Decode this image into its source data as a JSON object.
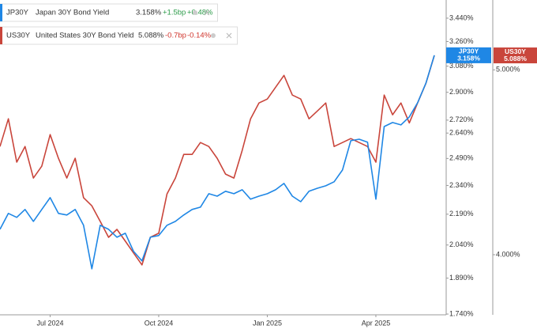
{
  "chart_data": {
    "type": "line",
    "log_scale": true,
    "grid": false,
    "categories": [
      null,
      null,
      null,
      null,
      null,
      null,
      "Jul 2024",
      null,
      null,
      null,
      null,
      null,
      null,
      null,
      null,
      null,
      null,
      null,
      null,
      "Oct 2024",
      null,
      null,
      null,
      null,
      null,
      null,
      null,
      null,
      null,
      null,
      null,
      null,
      "Jan 2025",
      null,
      null,
      null,
      null,
      null,
      null,
      null,
      null,
      null,
      null,
      null,
      null,
      "Apr 2025",
      null,
      null,
      null,
      null,
      null,
      null,
      null
    ],
    "series": [
      {
        "name": "JP30Y",
        "description": "Japan 30Y Bond Yield",
        "color": "#1f87e5",
        "last": "3.158%",
        "change": "+1.5bp",
        "change_pct": "+0.48%",
        "change_color": "#2a9a48",
        "values": [
          2.115,
          2.194,
          2.174,
          2.214,
          2.154,
          2.214,
          2.275,
          2.194,
          2.186,
          2.214,
          2.135,
          1.931,
          2.135,
          2.115,
          2.077,
          2.096,
          2.01,
          1.967,
          2.077,
          2.085,
          2.135,
          2.154,
          2.186,
          2.214,
          2.226,
          2.296,
          2.283,
          2.309,
          2.296,
          2.317,
          2.267,
          2.283,
          2.296,
          2.317,
          2.351,
          2.283,
          2.254,
          2.309,
          2.325,
          2.338,
          2.36,
          2.425,
          2.594,
          2.603,
          2.585,
          2.267,
          2.68,
          2.705,
          2.69,
          2.74,
          2.831,
          2.963,
          3.158
        ]
      },
      {
        "name": "US30Y",
        "description": "United States 30Y Bond Yield",
        "color": "#c9453b",
        "axis": "y2",
        "last": "5.088%",
        "change": "-0.7bp",
        "change_pct": "-0.14%",
        "change_color": "#d0342c",
        "values": [
          4.558,
          4.713,
          4.473,
          4.558,
          4.388,
          4.451,
          4.624,
          4.494,
          4.388,
          4.494,
          4.285,
          4.243,
          4.164,
          4.085,
          4.124,
          4.066,
          4.008,
          3.951,
          4.085,
          4.105,
          4.305,
          4.388,
          4.515,
          4.515,
          4.58,
          4.558,
          4.494,
          4.409,
          4.388,
          4.537,
          4.713,
          4.804,
          4.827,
          4.896,
          4.967,
          4.85,
          4.827,
          4.713,
          4.758,
          4.804,
          4.558,
          4.58,
          4.602,
          4.58,
          4.558,
          4.473,
          4.85,
          4.736,
          4.804,
          4.69,
          4.804,
          4.92,
          5.088
        ]
      }
    ],
    "ylim": [
      1.737,
      3.587
    ],
    "yticks": [
      {
        "value": 3.44,
        "label": "3.440%"
      },
      {
        "value": 3.26,
        "label": "3.260%"
      },
      {
        "value": 3.08,
        "label": "3.080%"
      },
      {
        "value": 2.9,
        "label": "2.900%"
      },
      {
        "value": 2.72,
        "label": "2.720%"
      },
      {
        "value": 2.64,
        "label": "2.640%"
      },
      {
        "value": 2.49,
        "label": "2.490%"
      },
      {
        "value": 2.34,
        "label": "2.340%"
      },
      {
        "value": 2.19,
        "label": "2.190%"
      },
      {
        "value": 2.04,
        "label": "2.040%"
      },
      {
        "value": 1.89,
        "label": "1.890%"
      },
      {
        "value": 1.74,
        "label": "1.740%"
      }
    ],
    "y2lim": [
      3.72,
      5.44
    ],
    "y2ticks": [
      {
        "value": 5,
        "label": "5.000%"
      },
      {
        "value": 4,
        "label": "4.000%"
      }
    ]
  }
}
